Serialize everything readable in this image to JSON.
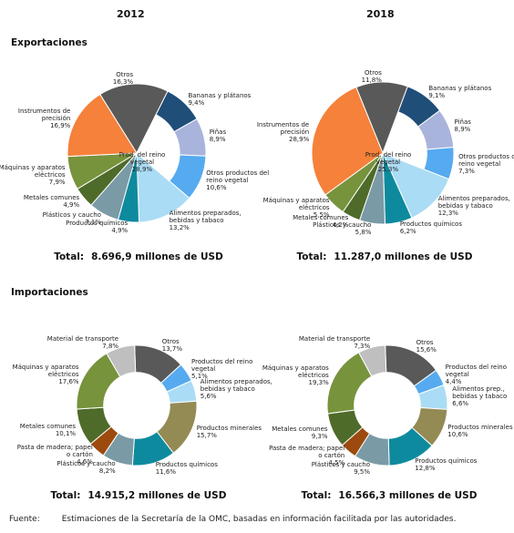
{
  "columns": [
    "2012",
    "2018"
  ],
  "sections": [
    "Exportaciones",
    "Importaciones"
  ],
  "source": {
    "label": "Fuente:",
    "text": "Estimaciones de la Secretaría de la OMC, basadas en información facilitada por las autoridades."
  },
  "chart_data": [
    {
      "type": "pie",
      "categories": [
        "Otros",
        "Bananas y plátanos",
        "Piñas",
        "Otros productos del reino vegetal",
        "Alimentos preparados, bebidas y tabaco",
        "Productos químicos",
        "Plásticos y caucho",
        "Metales comunes",
        "Máquinas y aparatos eléctricos",
        "Instrumentos de precisión"
      ],
      "values": [
        16.3,
        9.4,
        8.9,
        10.6,
        13.2,
        4.9,
        7.1,
        4.9,
        7.9,
        16.9
      ],
      "value_labels": [
        "16,3%",
        "9,4%",
        "8,9%",
        "10,6%",
        "13,2%",
        "4,9%",
        "7,1%",
        "4,9%",
        "7,9%",
        "16,9%"
      ],
      "colors": [
        "#595959",
        "#1f4e79",
        "#a9b4dc",
        "#55aaf0",
        "#aadcf5",
        "#0e8a9e",
        "#7a9aa6",
        "#4e6b2a",
        "#77933c",
        "#f5813a"
      ],
      "inner_label": "Prod. del reino vegetal",
      "inner_value": 28.9,
      "inner_value_label": "28,9%",
      "total_label": "Total:",
      "total": "8.696,9 millones de USD"
    },
    {
      "type": "pie",
      "categories": [
        "Otros",
        "Bananas y plátanos",
        "Piñas",
        "Otros productos del reino vegetal",
        "Alimentos preparados, bebidas y tabaco",
        "Productos químicos",
        "Plásticos y caucho",
        "Metales comunes",
        "Máquinas y aparatos eléctricos",
        "Instrumentos de precisión"
      ],
      "values": [
        11.8,
        9.1,
        8.9,
        7.3,
        12.3,
        6.2,
        5.8,
        4.2,
        5.5,
        28.9
      ],
      "value_labels": [
        "11,8%",
        "9,1%",
        "8,9%",
        "7,3%",
        "12,3%",
        "6,2%",
        "5,8%",
        "4,2%",
        "5,5%",
        "28,9%"
      ],
      "colors": [
        "#595959",
        "#1f4e79",
        "#a9b4dc",
        "#55aaf0",
        "#aadcf5",
        "#0e8a9e",
        "#7a9aa6",
        "#4e6b2a",
        "#77933c",
        "#f5813a"
      ],
      "inner_label": "Prod. del reino vegetal",
      "inner_value": 25.3,
      "inner_value_label": "25,3%",
      "total_label": "Total:",
      "total": "11.287,0 millones de USD"
    },
    {
      "type": "donut",
      "categories": [
        "Otros",
        "Productos del reino vegetal",
        "Alimentos preparados, bebidas y tabaco",
        "Productos minerales",
        "Productos químicos",
        "Plásticos y caucho",
        "Pasta de madera; papel o cartón",
        "Metales comunes",
        "Máquinas y aparatos eléctricos",
        "Material de transporte"
      ],
      "values": [
        13.7,
        5.1,
        5.6,
        15.7,
        11.6,
        8.2,
        4.6,
        10.1,
        17.6,
        7.8
      ],
      "value_labels": [
        "13,7%",
        "5,1%",
        "5,6%",
        "15,7%",
        "11,6%",
        "8,2%",
        "4,6%",
        "10,1%",
        "17,6%",
        "7,8%"
      ],
      "colors": [
        "#595959",
        "#55aaf0",
        "#aadcf5",
        "#948a54",
        "#0e8a9e",
        "#7a9aa6",
        "#9c4a0e",
        "#4e6b2a",
        "#77933c",
        "#bfbfbf"
      ],
      "total_label": "Total:",
      "total": "14.915,2 millones de USD"
    },
    {
      "type": "donut",
      "categories": [
        "Otros",
        "Productos del reino vegetal",
        "Alimentos prep., bebidas y tabaco",
        "Productos minerales",
        "Productos químicos",
        "Plásticos y caucho",
        "Pasta de madera; papel o cartón",
        "Metales comunes",
        "Máquinas y aparatos eléctricos",
        "Material de transporte"
      ],
      "values": [
        15.6,
        4.4,
        6.6,
        10.6,
        12.8,
        9.5,
        4.5,
        9.3,
        19.3,
        7.3
      ],
      "value_labels": [
        "15,6%",
        "4,4%",
        "6,6%",
        "10,6%",
        "12,8%",
        "9,5%",
        "4,5%",
        "9,3%",
        "19,3%",
        "7,3%"
      ],
      "colors": [
        "#595959",
        "#55aaf0",
        "#aadcf5",
        "#948a54",
        "#0e8a9e",
        "#7a9aa6",
        "#9c4a0e",
        "#4e6b2a",
        "#77933c",
        "#bfbfbf"
      ],
      "total_label": "Total:",
      "total": "16.566,3 millones de USD"
    }
  ]
}
